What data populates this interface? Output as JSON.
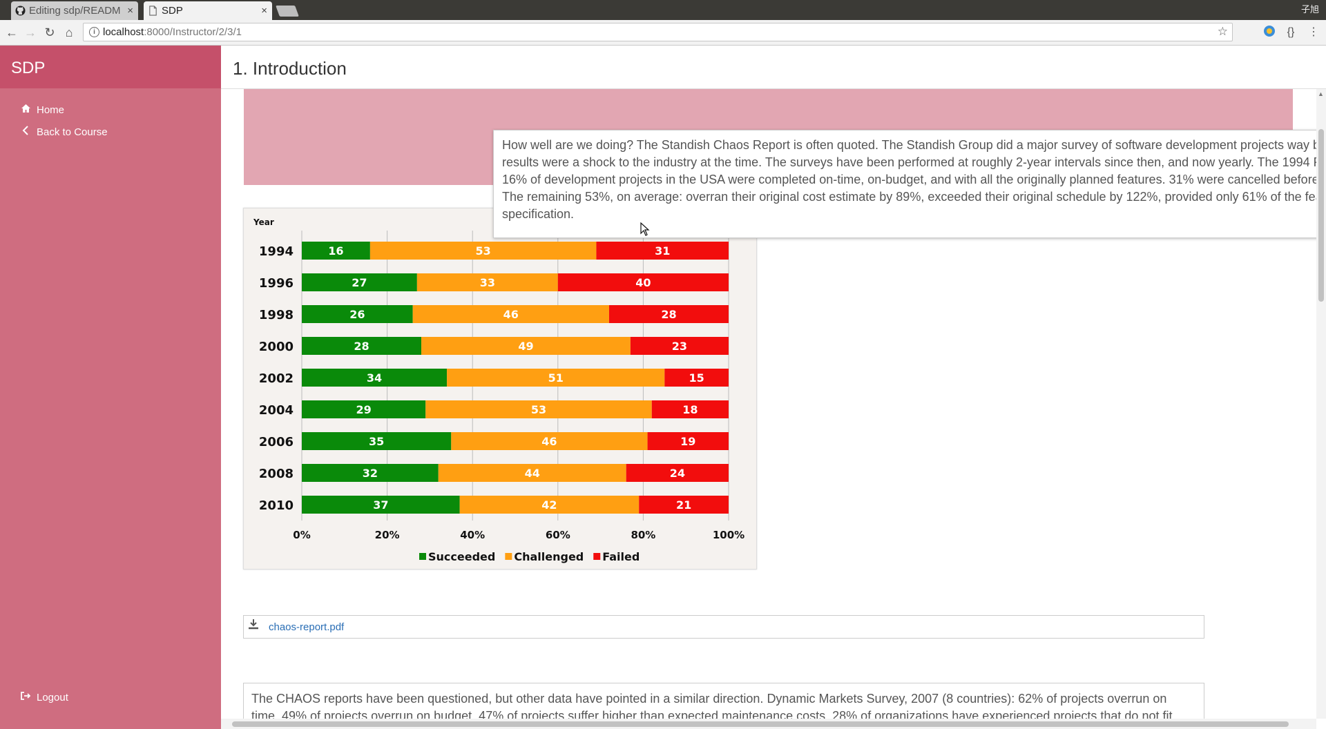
{
  "browser": {
    "tabs": [
      {
        "title": "Editing sdp/READM",
        "close": "×"
      },
      {
        "title": "SDP",
        "close": "×"
      }
    ],
    "profile_name": "子旭",
    "url_host": "localhost",
    "url_path": ":8000/Instructor/2/3/1"
  },
  "app": {
    "brand": "SDP",
    "sidebar": {
      "items": [
        {
          "label": "Home",
          "icon": "home-icon"
        },
        {
          "label": "Back to Course",
          "icon": "chevron-left-icon"
        }
      ],
      "logout": "Logout"
    },
    "page_title": "1. Introduction",
    "tooltip_text": "How well are we doing? The Standish Chaos Report is often quoted. The Standish Group did a major survey of software development projects way back in 1994. The results were a shock to the industry at the time. The surveys have been performed at roughly 2-year intervals since then, and now yearly. The 1994 Report found: Only 16% of development projects in the USA were completed on-time, on-budget, and with all the originally planned features. 31% were cancelled before they were completed. The remaining 53%, on average: overran their original cost estimate by 89%, exceeded their original schedule by 122%, provided only 61% of the features in the original specification.",
    "attachment": "chaos-report.pdf",
    "paragraph": "The CHAOS reports have been questioned, but other data have pointed in a similar direction. Dynamic Markets Survey, 2007 (8 countries): 62% of projects overrun on time. 49% of projects overrun on budget. 47% of projects suffer higher than expected maintenance costs. 28% of organizations have experienced projects that do not fit"
  },
  "chart_data": {
    "type": "bar",
    "orientation": "horizontal",
    "stacked": true,
    "y_axis_title": "Year",
    "categories": [
      "1994",
      "1996",
      "1998",
      "2000",
      "2002",
      "2004",
      "2006",
      "2008",
      "2010"
    ],
    "series": [
      {
        "name": "Succeeded",
        "color": "#0a8a0a",
        "values": [
          16,
          27,
          26,
          28,
          34,
          29,
          35,
          32,
          37
        ]
      },
      {
        "name": "Challenged",
        "color": "#ff9f12",
        "values": [
          53,
          33,
          46,
          49,
          51,
          53,
          46,
          44,
          42
        ]
      },
      {
        "name": "Failed",
        "color": "#f20d0d",
        "values": [
          31,
          40,
          28,
          23,
          15,
          18,
          19,
          24,
          21
        ]
      }
    ],
    "xlim": [
      0,
      100
    ],
    "x_ticks": [
      "0%",
      "20%",
      "40%",
      "60%",
      "80%",
      "100%"
    ],
    "grid": "vertical",
    "legend_position": "bottom"
  }
}
